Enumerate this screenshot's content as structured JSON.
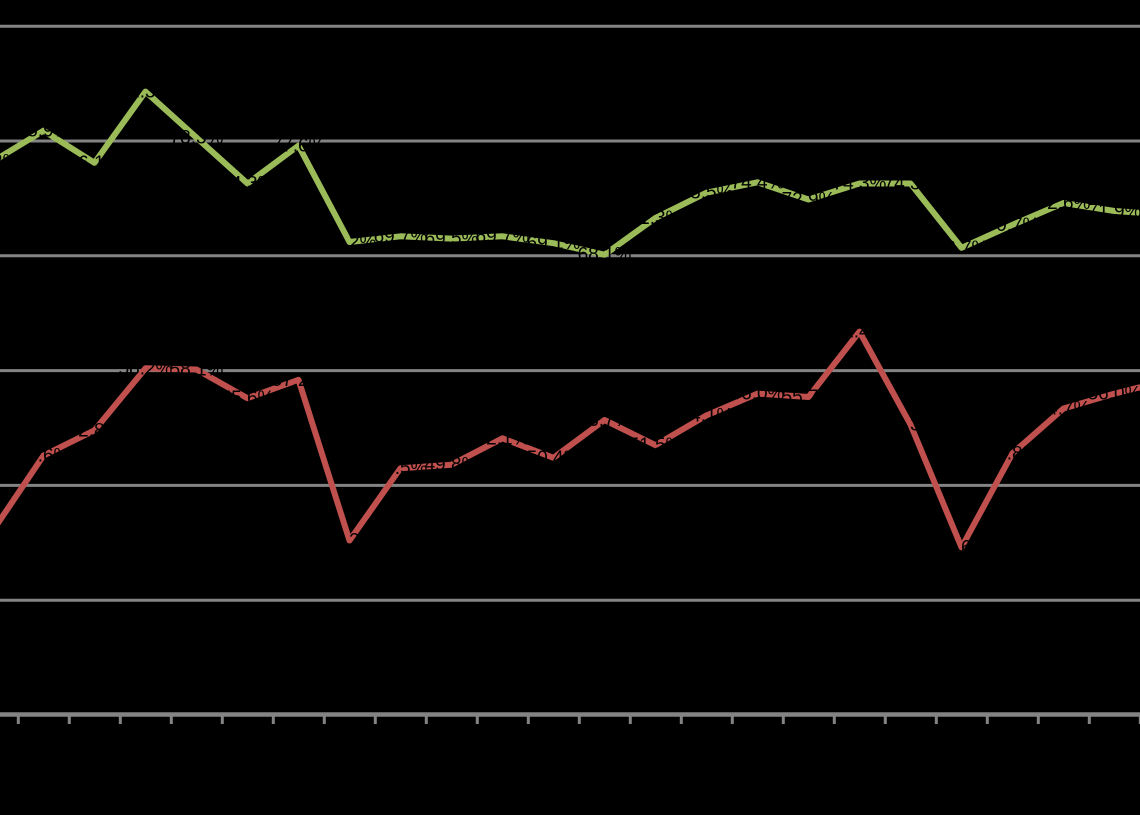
{
  "chart_data": {
    "type": "line",
    "title": "",
    "legend": "none",
    "grid": "horizontal",
    "background_color": "#000000",
    "gridline_color": "#848484",
    "axis_color": "#848484",
    "data_label_color": "#000000",
    "x_axis": {
      "tick_labels_visible": false,
      "tick_count": 23,
      "categories_visible": false
    },
    "y_axis": {
      "labels_visible": false,
      "unit": "%",
      "min": 28,
      "max": 88,
      "gridline_values": [
        88,
        78,
        68,
        58,
        48,
        38,
        28
      ]
    },
    "series": [
      {
        "name": "green",
        "color": "#9BBB59",
        "values": [
          76.2,
          78.9,
          76.1,
          82.3,
          78.3,
          74.3,
          77.6,
          69.2,
          69.7,
          69.5,
          69.7,
          69.1,
          68.1,
          71.3,
          73.5,
          74.4,
          72.9,
          74.3,
          74.3,
          68.7,
          70.7,
          72.6,
          71.9,
          71.6
        ],
        "labels": [
          "76.2%",
          "78.9%",
          "76.1%",
          "82.3%",
          "78.3%",
          "74.3%",
          "77.6%",
          "69.2%",
          "69.7%",
          "69.5%",
          "69.7%",
          "69.1%",
          "68.1%",
          "71.3%",
          "73.5%",
          "74.4%",
          "72.9%",
          "74.3%",
          "74.3%",
          "68.7%",
          "70.7%",
          "72.6%",
          "71.9%",
          "71.6%"
        ]
      },
      {
        "name": "red",
        "color": "#C0504D",
        "values": [
          44.0,
          50.6,
          52.8,
          58.2,
          58.1,
          55.6,
          57.2,
          43.2,
          49.5,
          49.8,
          52.1,
          50.4,
          53.7,
          51.5,
          54.1,
          56.0,
          55.7,
          61.4,
          53.3,
          42.6,
          50.8,
          54.7,
          56.0,
          57.1
        ],
        "labels": [
          "44.0%",
          "50.6%",
          "52.8%",
          "58.2%",
          "58.1%",
          "55.6%",
          "57.2%",
          "43.2%",
          "49.5%",
          "49.8%",
          "52.1%",
          "50.4%",
          "53.7%",
          "51.5%",
          "54.1%",
          "56.0%",
          "55.7%",
          "61.4%",
          "53.3%",
          "42.6%",
          "50.8%",
          "54.7%",
          "56.0%",
          "57.1%"
        ]
      }
    ]
  }
}
